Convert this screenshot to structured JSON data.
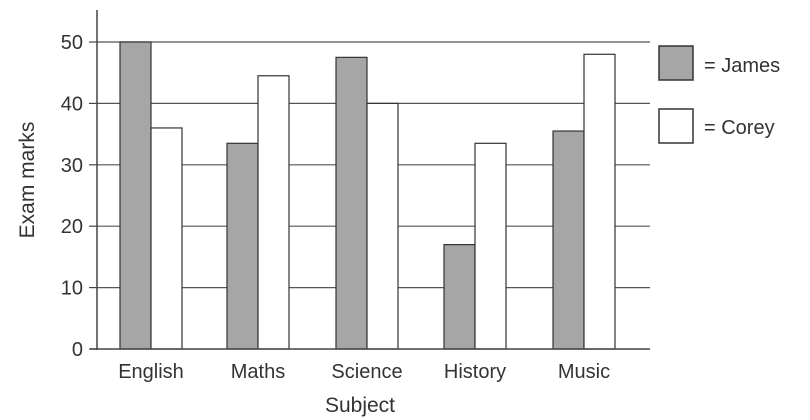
{
  "chart_data": {
    "type": "bar",
    "xlabel": "Subject",
    "ylabel": "Exam marks",
    "categories": [
      "English",
      "Maths",
      "Science",
      "History",
      "Music"
    ],
    "series": [
      {
        "name": "= James",
        "values": [
          50,
          33.5,
          47.5,
          17,
          35.5
        ],
        "color": "#a6a6a6"
      },
      {
        "name": "= Corey",
        "values": [
          36,
          44.5,
          40,
          33.5,
          48
        ],
        "color": "#ffffff"
      }
    ],
    "yticks": [
      0,
      10,
      20,
      30,
      40,
      50
    ],
    "ylim": [
      0,
      55
    ],
    "grid": true,
    "legend_position": "right"
  }
}
